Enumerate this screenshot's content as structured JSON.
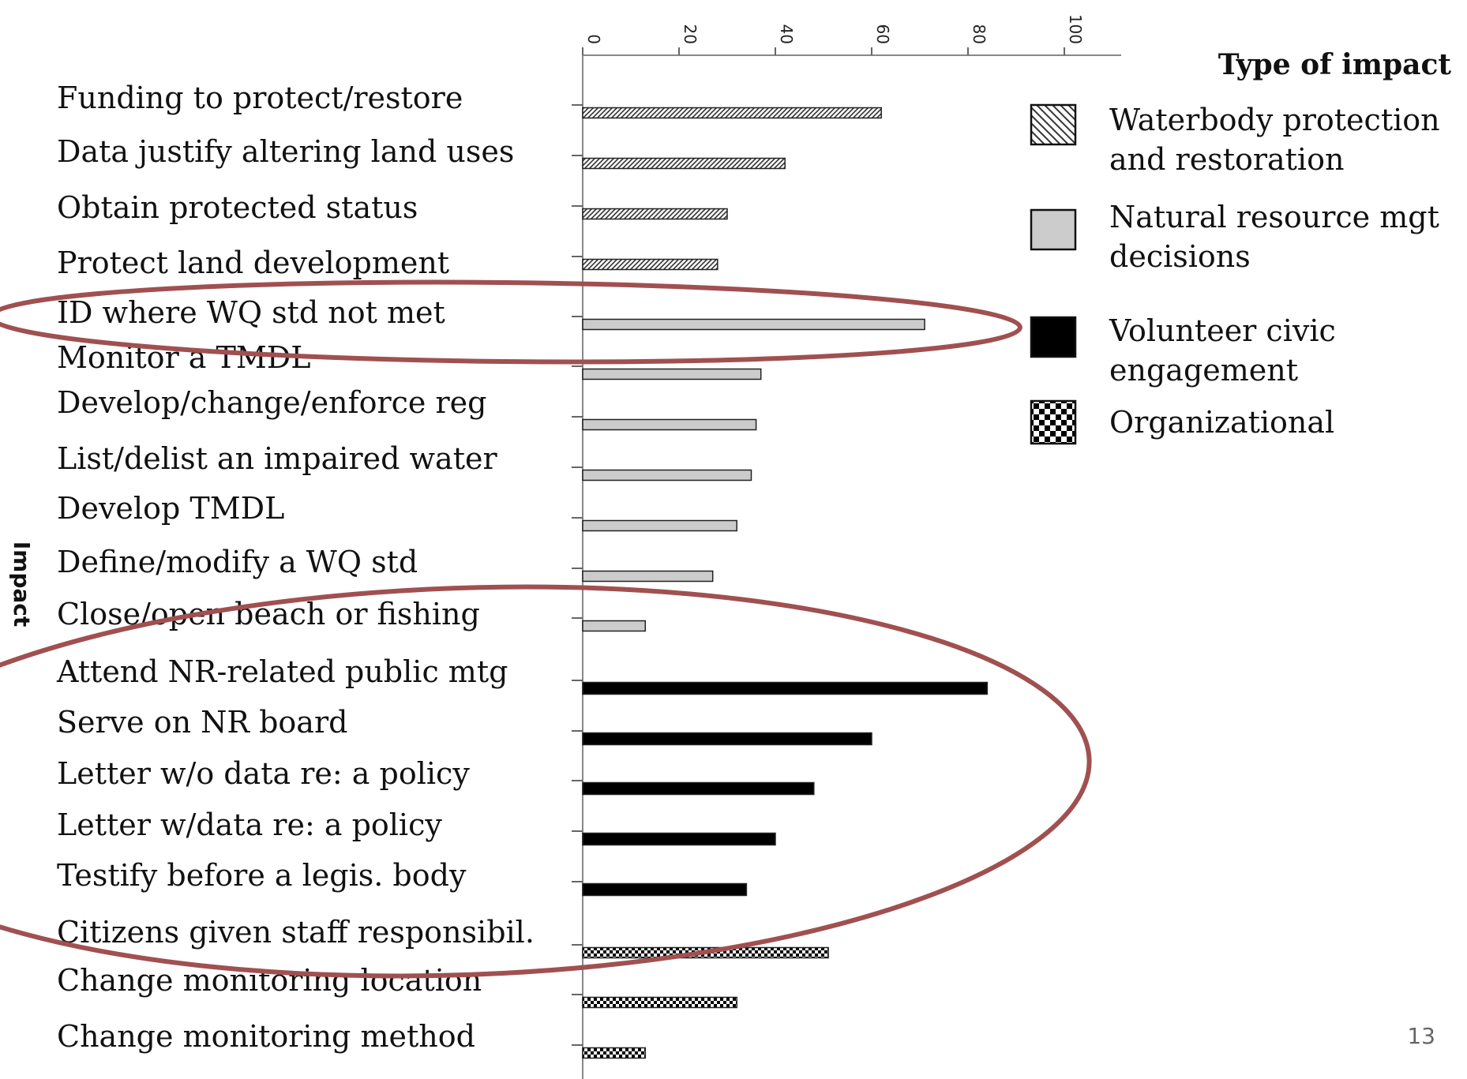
{
  "chart_data": {
    "type": "bar",
    "orientation": "horizontal",
    "ylabel": "Impact",
    "xlim": [
      0,
      100
    ],
    "x_ticks": [
      "0",
      "20",
      "40",
      "60",
      "80",
      "100"
    ],
    "grid": false,
    "legend_title": "Type of impact",
    "legend_position": "right",
    "series": [
      {
        "name": "Waterbody protection and restoration",
        "name_lines": [
          "Waterbody protection",
          "and restoration"
        ],
        "pattern": "diagonal-hatch",
        "color": "#ffffff"
      },
      {
        "name": "Natural resource mgt decisions",
        "name_lines": [
          "Natural resource mgt",
          "decisions"
        ],
        "pattern": "solid-gray",
        "color": "#cccccc"
      },
      {
        "name": "Volunteer civic engagement",
        "name_lines": [
          "Volunteer civic",
          "engagement"
        ],
        "pattern": "solid-black",
        "color": "#000000"
      },
      {
        "name": "Organizational",
        "name_lines": [
          "Organizational"
        ],
        "pattern": "checkerboard",
        "color": "#000000"
      }
    ],
    "categories": [
      {
        "label": "Funding to protect/restore",
        "value": 62,
        "series": 0
      },
      {
        "label": "Data justify altering land uses",
        "value": 42,
        "series": 0
      },
      {
        "label": "Obtain protected status",
        "value": 30,
        "series": 0
      },
      {
        "label": "Protect land development",
        "value": 28,
        "series": 0
      },
      {
        "label": "ID where WQ std not met",
        "value": 71,
        "series": 1
      },
      {
        "label": "Monitor a TMDL",
        "value": 37,
        "series": 1
      },
      {
        "label": "Develop/change/enforce reg",
        "value": 36,
        "series": 1
      },
      {
        "label": "List/delist an impaired water",
        "value": 35,
        "series": 1
      },
      {
        "label": "Develop TMDL",
        "value": 32,
        "series": 1
      },
      {
        "label": "Define/modify a WQ std",
        "value": 27,
        "series": 1
      },
      {
        "label": "Close/open beach or fishing",
        "value": 13,
        "series": 1
      },
      {
        "label": "Attend NR-related public mtg",
        "value": 84,
        "series": 2
      },
      {
        "label": "Serve on NR board",
        "value": 60,
        "series": 2
      },
      {
        "label": "Letter w/o data re: a policy",
        "value": 48,
        "series": 2
      },
      {
        "label": "Letter w/data re: a policy",
        "value": 40,
        "series": 2
      },
      {
        "label": "Testify before a legis. body",
        "value": 34,
        "series": 2
      },
      {
        "label": "Citizens given staff responsibil.",
        "value": 51,
        "series": 3
      },
      {
        "label": "Change monitoring location",
        "value": 32,
        "series": 3
      },
      {
        "label": "Change monitoring method",
        "value": 13,
        "series": 3
      }
    ],
    "annotations": [
      {
        "type": "ellipse",
        "highlights": [
          "ID where WQ std not met"
        ],
        "color": "#a05050"
      },
      {
        "type": "ellipse",
        "highlights": [
          "Close/open beach or fishing",
          "Attend NR-related public mtg",
          "Serve on NR board",
          "Letter w/o data re: a policy",
          "Letter w/data re: a policy",
          "Testify before a legis. body",
          "Citizens given staff responsibil."
        ],
        "color": "#a05050"
      }
    ]
  },
  "page_number": "13"
}
